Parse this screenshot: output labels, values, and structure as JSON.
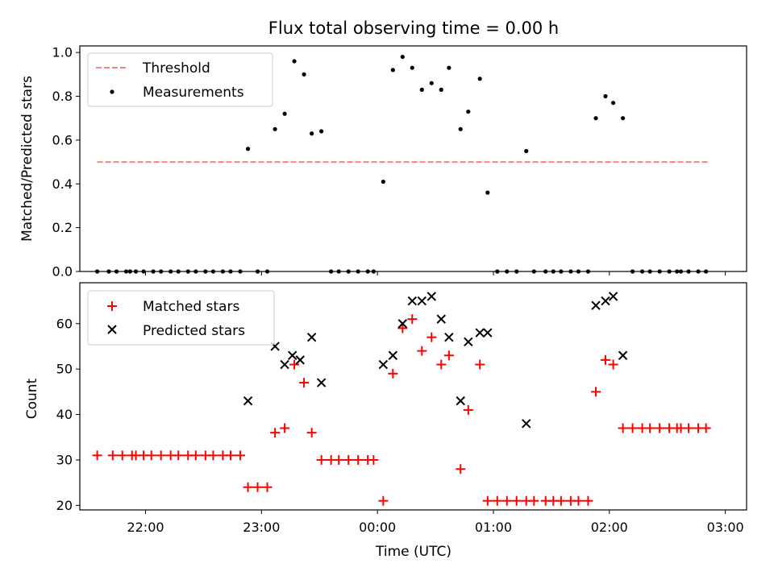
{
  "chart_data": [
    {
      "type": "scatter",
      "title": "Flux total observing time = 0.00 h",
      "xlabel": "",
      "ylabel": "Matched/Predicted stars",
      "xlim": [
        "21:26",
        "03:11"
      ],
      "ylim": [
        0,
        1.03
      ],
      "yticks": [
        "0.0",
        "0.2",
        "0.4",
        "0.6",
        "0.8",
        "1.0"
      ],
      "legend": {
        "placement": "top-left",
        "entries": [
          "Threshold",
          "Measurements"
        ]
      },
      "threshold": {
        "name": "Threshold",
        "value": 0.5,
        "x": [
          "21:35",
          "02:51"
        ],
        "color": "#ff8080",
        "style": "dashed"
      },
      "series": [
        {
          "name": "Measurements",
          "color": "#000000",
          "points": [
            [
              "21:35",
              0
            ],
            [
              "21:41",
              0
            ],
            [
              "21:45",
              0
            ],
            [
              "21:50",
              0
            ],
            [
              "21:52",
              0
            ],
            [
              "21:55",
              0
            ],
            [
              "21:59",
              0
            ],
            [
              "22:04",
              0
            ],
            [
              "22:08",
              0
            ],
            [
              "22:13",
              0
            ],
            [
              "22:17",
              0
            ],
            [
              "22:22",
              0
            ],
            [
              "22:26",
              0
            ],
            [
              "22:31",
              0
            ],
            [
              "22:35",
              0
            ],
            [
              "22:40",
              0
            ],
            [
              "22:44",
              0
            ],
            [
              "22:49",
              0
            ],
            [
              "22:53",
              0.56
            ],
            [
              "22:58",
              0
            ],
            [
              "23:03",
              0
            ],
            [
              "23:07",
              0.65
            ],
            [
              "23:12",
              0.72
            ],
            [
              "23:17",
              0.96
            ],
            [
              "23:22",
              0.9
            ],
            [
              "23:26",
              0.63
            ],
            [
              "23:31",
              0.64
            ],
            [
              "23:36",
              0
            ],
            [
              "23:40",
              0
            ],
            [
              "23:45",
              0
            ],
            [
              "23:50",
              0
            ],
            [
              "23:55",
              0
            ],
            [
              "23:58",
              0
            ],
            [
              "00:03",
              0.41
            ],
            [
              "00:08",
              0.92
            ],
            [
              "00:13",
              0.98
            ],
            [
              "00:18",
              0.93
            ],
            [
              "00:23",
              0.83
            ],
            [
              "00:28",
              0.86
            ],
            [
              "00:33",
              0.83
            ],
            [
              "00:37",
              0.93
            ],
            [
              "00:43",
              0.65
            ],
            [
              "00:47",
              0.73
            ],
            [
              "00:53",
              0.88
            ],
            [
              "00:57",
              0.36
            ],
            [
              "01:02",
              0
            ],
            [
              "01:07",
              0
            ],
            [
              "01:12",
              0
            ],
            [
              "01:17",
              0.55
            ],
            [
              "01:21",
              0
            ],
            [
              "01:27",
              0
            ],
            [
              "01:31",
              0
            ],
            [
              "01:35",
              0
            ],
            [
              "01:40",
              0
            ],
            [
              "01:44",
              0
            ],
            [
              "01:49",
              0
            ],
            [
              "01:53",
              0.7
            ],
            [
              "01:58",
              0.8
            ],
            [
              "02:02",
              0.77
            ],
            [
              "02:07",
              0.7
            ],
            [
              "02:12",
              0
            ],
            [
              "02:17",
              0
            ],
            [
              "02:21",
              0
            ],
            [
              "02:26",
              0
            ],
            [
              "02:31",
              0
            ],
            [
              "02:35",
              0
            ],
            [
              "02:37",
              0
            ],
            [
              "02:41",
              0
            ],
            [
              "02:46",
              0
            ],
            [
              "02:50",
              0
            ]
          ]
        }
      ]
    },
    {
      "type": "scatter",
      "title": "",
      "xlabel": "Time (UTC)",
      "ylabel": "Count",
      "xlim": [
        "21:26",
        "03:11"
      ],
      "ylim": [
        19,
        69
      ],
      "xticks": [
        "22:00",
        "23:00",
        "00:00",
        "01:00",
        "02:00",
        "03:00"
      ],
      "yticks": [
        "20",
        "30",
        "40",
        "50",
        "60"
      ],
      "legend": {
        "placement": "top-left",
        "entries": [
          "Matched stars",
          "Predicted stars"
        ]
      },
      "series": [
        {
          "name": "Matched stars",
          "marker": "+",
          "color": "#ff0000",
          "points": [
            [
              "21:35",
              31
            ],
            [
              "21:43",
              31
            ],
            [
              "21:48",
              31
            ],
            [
              "21:53",
              31
            ],
            [
              "21:55",
              31
            ],
            [
              "21:59",
              31
            ],
            [
              "22:03",
              31
            ],
            [
              "22:08",
              31
            ],
            [
              "22:13",
              31
            ],
            [
              "22:17",
              31
            ],
            [
              "22:22",
              31
            ],
            [
              "22:26",
              31
            ],
            [
              "22:31",
              31
            ],
            [
              "22:35",
              31
            ],
            [
              "22:40",
              31
            ],
            [
              "22:44",
              31
            ],
            [
              "22:49",
              31
            ],
            [
              "22:53",
              24
            ],
            [
              "22:58",
              24
            ],
            [
              "23:03",
              24
            ],
            [
              "23:07",
              36
            ],
            [
              "23:12",
              37
            ],
            [
              "23:17",
              51
            ],
            [
              "23:22",
              47
            ],
            [
              "23:26",
              36
            ],
            [
              "23:31",
              30
            ],
            [
              "23:36",
              30
            ],
            [
              "23:40",
              30
            ],
            [
              "23:45",
              30
            ],
            [
              "23:50",
              30
            ],
            [
              "23:55",
              30
            ],
            [
              "23:58",
              30
            ],
            [
              "00:03",
              21
            ],
            [
              "00:08",
              49
            ],
            [
              "00:13",
              59
            ],
            [
              "00:18",
              61
            ],
            [
              "00:23",
              54
            ],
            [
              "00:28",
              57
            ],
            [
              "00:33",
              51
            ],
            [
              "00:37",
              53
            ],
            [
              "00:43",
              28
            ],
            [
              "00:47",
              41
            ],
            [
              "00:53",
              51
            ],
            [
              "00:57",
              21
            ],
            [
              "01:02",
              21
            ],
            [
              "01:07",
              21
            ],
            [
              "01:12",
              21
            ],
            [
              "01:17",
              21
            ],
            [
              "01:21",
              21
            ],
            [
              "01:27",
              21
            ],
            [
              "01:31",
              21
            ],
            [
              "01:35",
              21
            ],
            [
              "01:40",
              21
            ],
            [
              "01:44",
              21
            ],
            [
              "01:49",
              21
            ],
            [
              "01:53",
              45
            ],
            [
              "01:58",
              52
            ],
            [
              "02:02",
              51
            ],
            [
              "02:07",
              37
            ],
            [
              "02:12",
              37
            ],
            [
              "02:17",
              37
            ],
            [
              "02:21",
              37
            ],
            [
              "02:26",
              37
            ],
            [
              "02:31",
              37
            ],
            [
              "02:35",
              37
            ],
            [
              "02:37",
              37
            ],
            [
              "02:41",
              37
            ],
            [
              "02:46",
              37
            ],
            [
              "02:50",
              37
            ]
          ]
        },
        {
          "name": "Predicted stars",
          "marker": "x",
          "color": "#000000",
          "points": [
            [
              "22:53",
              43
            ],
            [
              "23:07",
              55
            ],
            [
              "23:12",
              51
            ],
            [
              "23:16",
              53
            ],
            [
              "23:20",
              52
            ],
            [
              "23:26",
              57
            ],
            [
              "23:31",
              47
            ],
            [
              "00:03",
              51
            ],
            [
              "00:08",
              53
            ],
            [
              "00:13",
              60
            ],
            [
              "00:18",
              65
            ],
            [
              "00:23",
              65
            ],
            [
              "00:28",
              66
            ],
            [
              "00:33",
              61
            ],
            [
              "00:37",
              57
            ],
            [
              "00:43",
              43
            ],
            [
              "00:47",
              56
            ],
            [
              "00:53",
              58
            ],
            [
              "00:57",
              58
            ],
            [
              "01:17",
              38
            ],
            [
              "01:53",
              64
            ],
            [
              "01:58",
              65
            ],
            [
              "02:02",
              66
            ],
            [
              "02:07",
              53
            ]
          ]
        }
      ]
    }
  ]
}
